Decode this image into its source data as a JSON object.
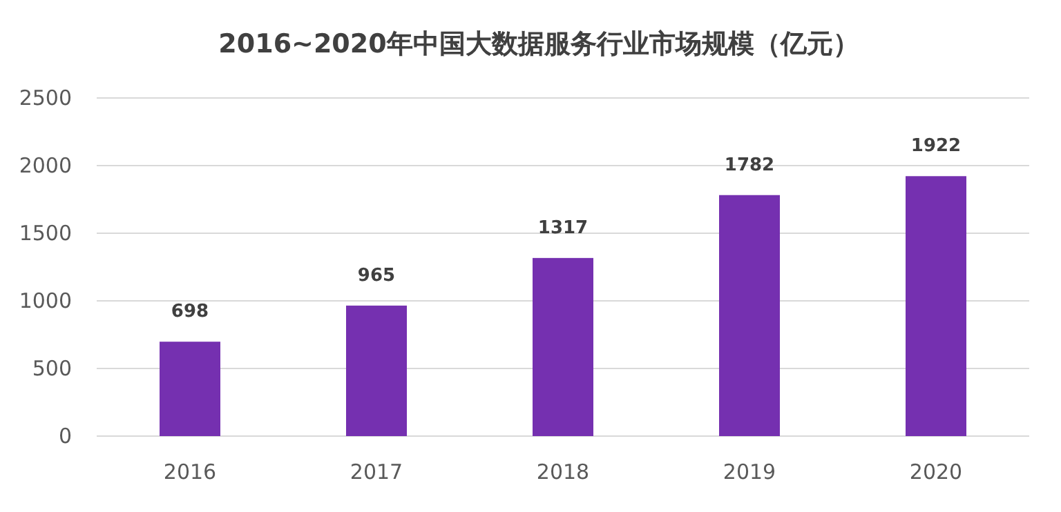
{
  "chart_data": {
    "type": "bar",
    "title": "2016~2020年中国大数据服务行业市场规模（亿元）",
    "categories": [
      "2016",
      "2017",
      "2018",
      "2019",
      "2020"
    ],
    "values": [
      698,
      965,
      1317,
      1782,
      1922
    ],
    "color": "#7530b0",
    "ylim": [
      0,
      2500
    ],
    "yticks": [
      0,
      500,
      1000,
      1500,
      2000,
      2500
    ],
    "grid": "y",
    "data_labels": true
  }
}
